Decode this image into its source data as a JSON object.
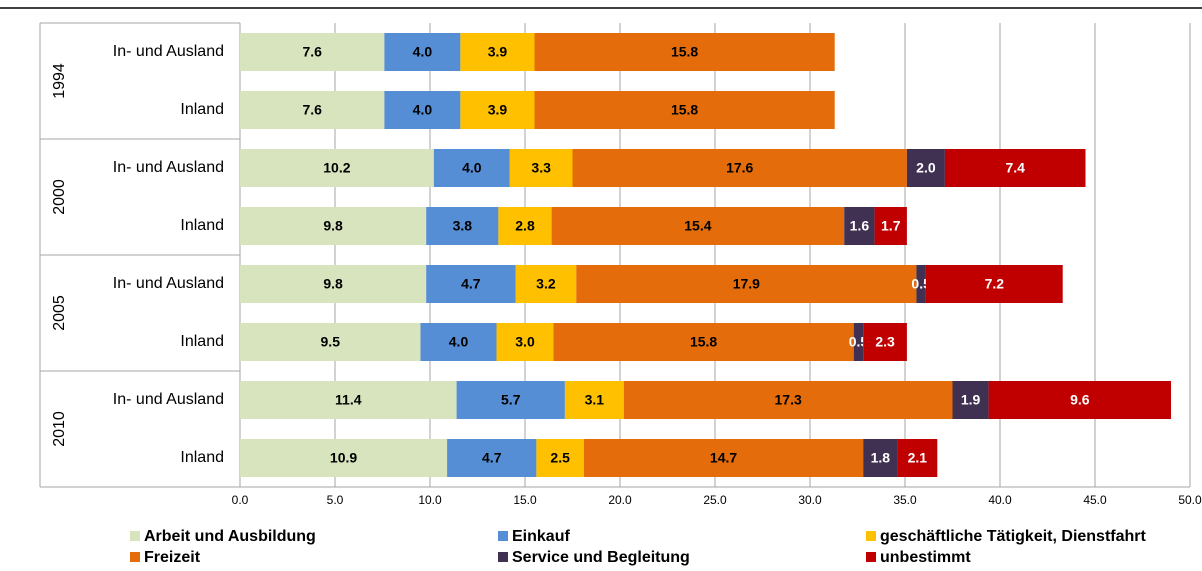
{
  "chart_data": {
    "type": "stacked-barh",
    "group_labels": [
      "1994",
      "2000",
      "2005",
      "2010"
    ],
    "categories": [
      "In- und Ausland",
      "Inland",
      "In- und Ausland",
      "Inland",
      "In- und Ausland",
      "Inland",
      "In- und Ausland",
      "Inland"
    ],
    "series": [
      {
        "name": "Arbeit und Ausbildung",
        "color": "#d7e4bd",
        "values": [
          7.6,
          7.6,
          10.2,
          9.8,
          9.8,
          9.5,
          11.4,
          10.9
        ],
        "value_labels": [
          "7.6",
          "7.6",
          "10.2",
          "9.8",
          "9.8",
          "9.5",
          "11.4",
          "10.9"
        ]
      },
      {
        "name": "Einkauf",
        "color": "#558ed5",
        "values": [
          4,
          4,
          4,
          3.8,
          4.7,
          4,
          5.7,
          4.7
        ],
        "value_labels": [
          "4.0",
          "4.0",
          "4.0",
          "3.8",
          "4.7",
          "4.0",
          "5.7",
          "4.7"
        ]
      },
      {
        "name": "geschäftliche Tätigkeit, Dienstfahrt",
        "color": "#ffc000",
        "values": [
          3.9,
          3.9,
          3.3,
          2.8,
          3.2,
          3,
          3.1,
          2.5
        ],
        "value_labels": [
          "3.9",
          "3.9",
          "3.3",
          "2.8",
          "3.2",
          "3.0",
          "3.1",
          "2.5"
        ]
      },
      {
        "name": "Freizeit",
        "color": "#e46c0a",
        "values": [
          15.8,
          15.8,
          17.6,
          15.4,
          17.9,
          15.8,
          17.3,
          14.7
        ],
        "value_labels": [
          "15.8",
          "15.8",
          "17.6",
          "15.4",
          "17.9",
          "15.8",
          "17.3",
          "14.7"
        ]
      },
      {
        "name": "Service und Begleitung",
        "color": "#403152",
        "values": [
          null,
          null,
          2,
          1.6,
          0.5,
          0.5,
          1.9,
          1.8
        ],
        "value_labels": [
          null,
          null,
          "2.0",
          "1.6",
          "0.5",
          "0.5",
          "1.9",
          "1.8"
        ]
      },
      {
        "name": "unbestimmt",
        "color": "#c00000",
        "values": [
          null,
          null,
          7.4,
          1.7,
          7.2,
          2.3,
          9.6,
          2.1
        ],
        "value_labels": [
          null,
          null,
          "7.4",
          "1.7",
          "7.2",
          "2.3",
          "9.6",
          "2.1"
        ]
      }
    ],
    "xlim": [
      0,
      50
    ],
    "xticks": [
      {
        "value": 0,
        "label": "0.0"
      },
      {
        "value": 5,
        "label": "5.0"
      },
      {
        "value": 10,
        "label": "10.0"
      },
      {
        "value": 15,
        "label": "15.0"
      },
      {
        "value": 20,
        "label": "20.0"
      },
      {
        "value": 25,
        "label": "25.0"
      },
      {
        "value": 30,
        "label": "30.0"
      },
      {
        "value": 35,
        "label": "35.0"
      },
      {
        "value": 40,
        "label": "40.0"
      },
      {
        "value": 45,
        "label": "45.0"
      },
      {
        "value": 50,
        "label": "50.0"
      }
    ],
    "grid": true,
    "legend": "bottom"
  }
}
